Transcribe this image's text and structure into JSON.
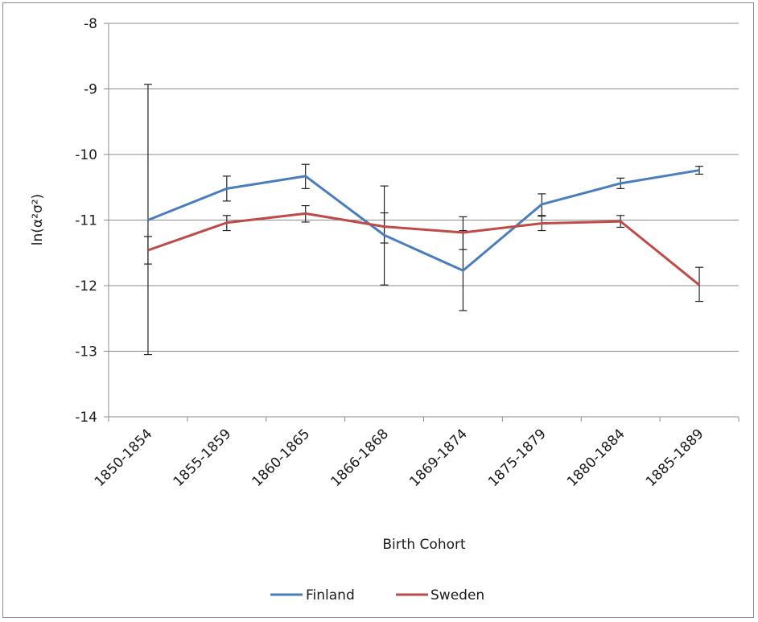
{
  "chart_data": {
    "type": "line",
    "categories": [
      "1850-1854",
      "1855-1859",
      "1860-1865",
      "1866-1868",
      "1869-1874",
      "1875-1879",
      "1880-1884",
      "1885-1889"
    ],
    "xlabel": "Birth Cohort",
    "ylabel": "ln(α²σ²)",
    "ylim": [
      -14,
      -8
    ],
    "yticks": [
      -8,
      -9,
      -10,
      -11,
      -12,
      -13,
      -14
    ],
    "grid": "horizontal",
    "legend_position": "bottom",
    "series": [
      {
        "name": "Finland",
        "color": "#4a7ebb",
        "values": [
          -11.0,
          -10.52,
          -10.33,
          -11.23,
          -11.77,
          -10.76,
          -10.44,
          -10.24
        ],
        "error_low": [
          -13.05,
          -10.71,
          -10.52,
          -11.99,
          -12.38,
          -10.93,
          -10.52,
          -10.3
        ],
        "error_high": [
          -8.93,
          -10.33,
          -10.15,
          -10.48,
          -11.16,
          -10.6,
          -10.36,
          -10.18
        ]
      },
      {
        "name": "Sweden",
        "color": "#be4b48",
        "values": [
          -11.46,
          -11.04,
          -10.9,
          -11.1,
          -11.19,
          -11.05,
          -11.02,
          -11.99
        ],
        "error_low": [
          -11.67,
          -11.16,
          -11.03,
          -11.35,
          -11.45,
          -11.16,
          -11.11,
          -12.24
        ],
        "error_high": [
          -11.25,
          -10.93,
          -10.78,
          -10.89,
          -10.95,
          -10.94,
          -10.93,
          -11.72
        ]
      }
    ]
  }
}
